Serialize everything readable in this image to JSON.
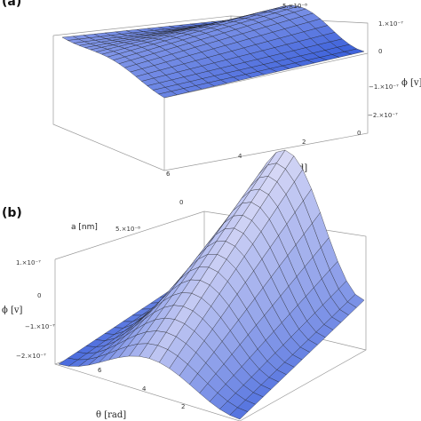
{
  "chart_data": [
    {
      "panel": "(a)",
      "type": "surface",
      "x_label": "θ [rad]",
      "z_label": "ϕ [v]",
      "x_ticks": [
        "0",
        "2",
        "4",
        "6"
      ],
      "y_ticks": [
        "5.×10⁻⁸"
      ],
      "z_ticks": [
        "1.×10⁻⁷",
        "0",
        "−1.×10⁻⁷",
        "−2.×10⁻⁷"
      ],
      "theta_range": [
        0,
        6.28
      ],
      "z_range": [
        -2e-07,
        1e-07
      ],
      "amplitude_scale": 0.55
    },
    {
      "panel": "(b)",
      "type": "surface",
      "x_label": "θ [rad]",
      "y_label": "a [nm]",
      "z_label": "ϕ [v]",
      "x_ticks": [
        "2",
        "4",
        "6"
      ],
      "y_ticks": [
        "0",
        "5.×10⁻⁸"
      ],
      "z_ticks": [
        "1.×10⁻⁷",
        "0",
        "−1.×10⁻⁷",
        "−2.×10⁻⁷"
      ],
      "theta_range": [
        0,
        6.28
      ],
      "z_range": [
        -2e-07,
        1e-07
      ],
      "amplitude_scale": 1.0
    }
  ],
  "colors": {
    "surface_light": "#f3eefb",
    "surface_dark": "#3f63dc",
    "mesh": "#1a1a1a",
    "box": "#9a9a9a"
  }
}
